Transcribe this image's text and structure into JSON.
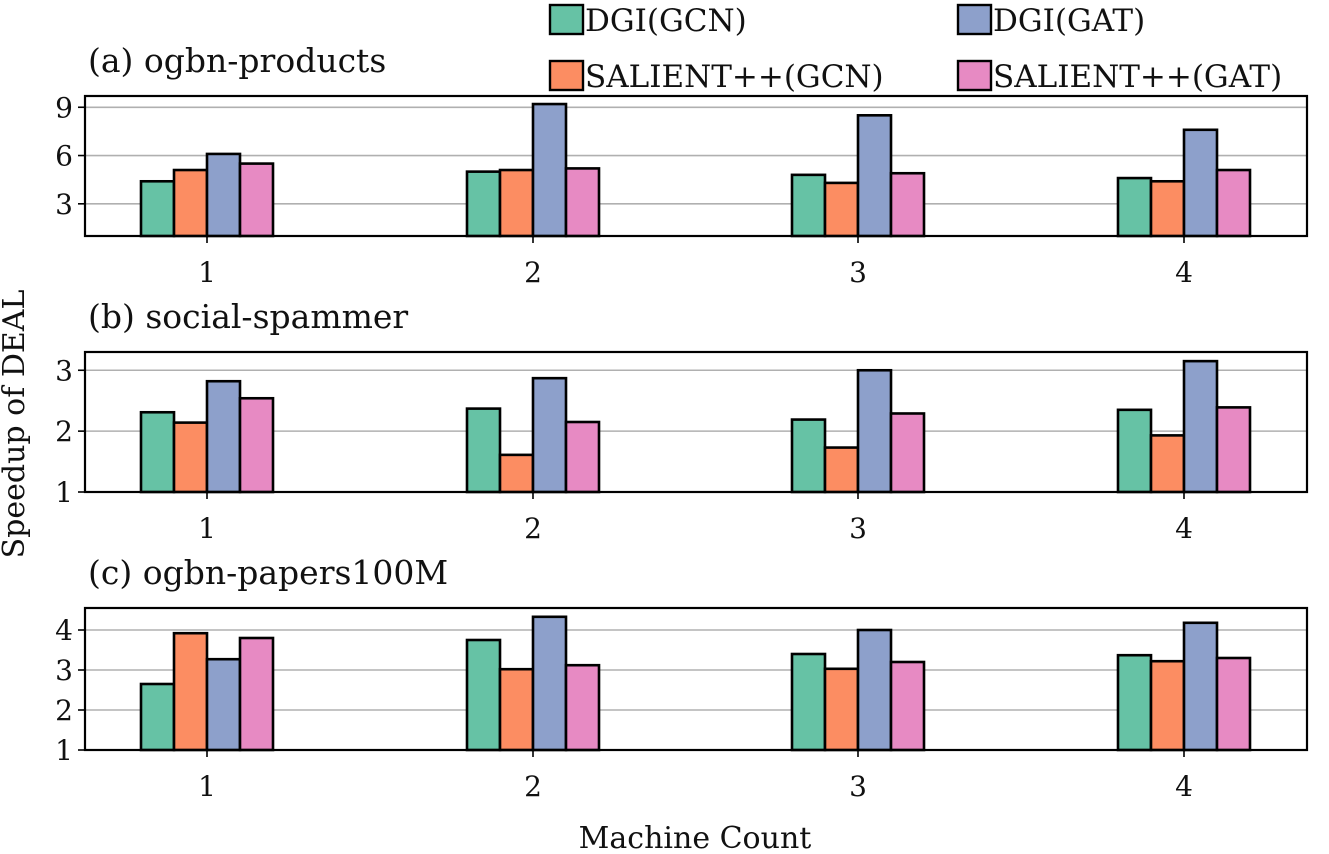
{
  "chart_data": {
    "type": "bar",
    "ylabel": "Speedup of DEAL",
    "xlabel": "Machine Count",
    "categories": [
      "1",
      "2",
      "3",
      "4"
    ],
    "legend": {
      "placement": "top-right",
      "entries": [
        {
          "name": "DGI(GCN)",
          "color": "#66c2a5"
        },
        {
          "name": "DGI(GAT)",
          "color": "#8da0cb"
        },
        {
          "name": "SALIENT++(GCN)",
          "color": "#fc8d62"
        },
        {
          "name": "SALIENT++(GAT)",
          "color": "#e78ac3"
        }
      ]
    },
    "series_order": [
      "DGI(GCN)",
      "SALIENT++(GCN)",
      "DGI(GAT)",
      "SALIENT++(GAT)"
    ],
    "colors": {
      "DGI(GCN)": "#66c2a5",
      "SALIENT++(GCN)": "#fc8d62",
      "DGI(GAT)": "#8da0cb",
      "SALIENT++(GAT)": "#e78ac3"
    },
    "panels": [
      {
        "title": "(a) ogbn-products",
        "ylim": [
          1.0,
          9.7
        ],
        "yticks": [
          3,
          6,
          9
        ],
        "grid": true,
        "series": [
          {
            "name": "DGI(GCN)",
            "values": [
              4.4,
              5.0,
              4.8,
              4.6
            ]
          },
          {
            "name": "SALIENT++(GCN)",
            "values": [
              5.1,
              5.1,
              4.3,
              4.4
            ]
          },
          {
            "name": "DGI(GAT)",
            "values": [
              6.1,
              9.2,
              8.5,
              7.6
            ]
          },
          {
            "name": "SALIENT++(GAT)",
            "values": [
              5.5,
              5.2,
              4.9,
              5.1
            ]
          }
        ]
      },
      {
        "title": "(b) social-spammer",
        "ylim": [
          1.0,
          3.3
        ],
        "yticks": [
          1,
          2,
          3
        ],
        "grid": true,
        "series": [
          {
            "name": "DGI(GCN)",
            "values": [
              2.31,
              2.37,
              2.19,
              2.35
            ]
          },
          {
            "name": "SALIENT++(GCN)",
            "values": [
              2.14,
              1.61,
              1.73,
              1.93
            ]
          },
          {
            "name": "DGI(GAT)",
            "values": [
              2.82,
              2.87,
              3.0,
              3.15
            ]
          },
          {
            "name": "SALIENT++(GAT)",
            "values": [
              2.54,
              2.15,
              2.29,
              2.39
            ]
          }
        ]
      },
      {
        "title": "(c) ogbn-papers100M",
        "ylim": [
          1.0,
          4.55
        ],
        "yticks": [
          1,
          2,
          3,
          4
        ],
        "grid": true,
        "series": [
          {
            "name": "DGI(GCN)",
            "values": [
              2.65,
              3.75,
              3.4,
              3.37
            ]
          },
          {
            "name": "SALIENT++(GCN)",
            "values": [
              3.92,
              3.02,
              3.03,
              3.22
            ]
          },
          {
            "name": "DGI(GAT)",
            "values": [
              3.27,
              4.33,
              4.0,
              4.18
            ]
          },
          {
            "name": "SALIENT++(GAT)",
            "values": [
              3.8,
              3.12,
              3.2,
              3.3
            ]
          }
        ]
      }
    ]
  }
}
